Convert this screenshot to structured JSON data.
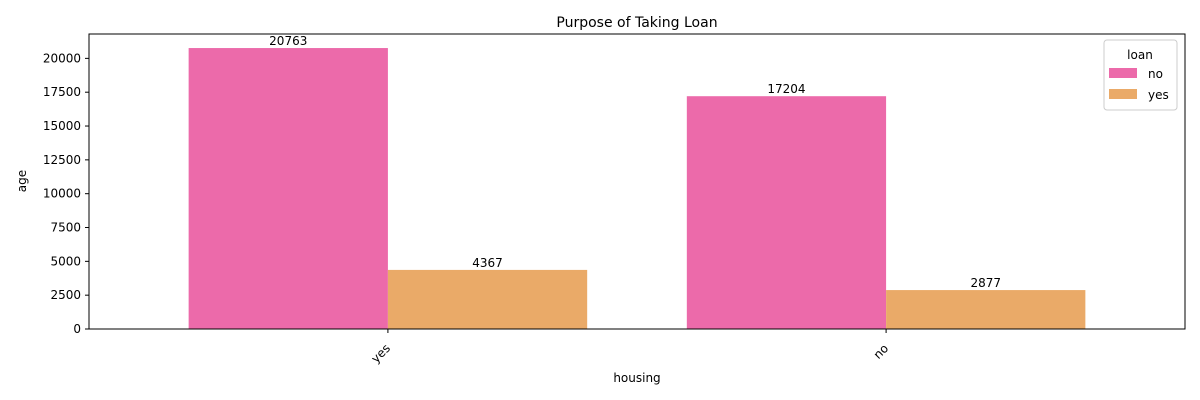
{
  "chart_data": {
    "type": "bar",
    "title": "Purpose of Taking Loan",
    "xlabel": "housing",
    "ylabel": "age",
    "categories": [
      "yes",
      "no"
    ],
    "series": [
      {
        "name": "no",
        "values": [
          20763,
          17204
        ],
        "color": "#ec6aaa"
      },
      {
        "name": "yes",
        "values": [
          4367,
          2877
        ],
        "color": "#eaaa68"
      }
    ],
    "ylim": [
      0,
      21801
    ],
    "yticks": [
      0,
      2500,
      5000,
      7500,
      10000,
      12500,
      15000,
      17500,
      20000
    ],
    "legend": {
      "title": "loan",
      "placement": "top-right"
    },
    "grid": false,
    "xtick_rotation": 45
  }
}
